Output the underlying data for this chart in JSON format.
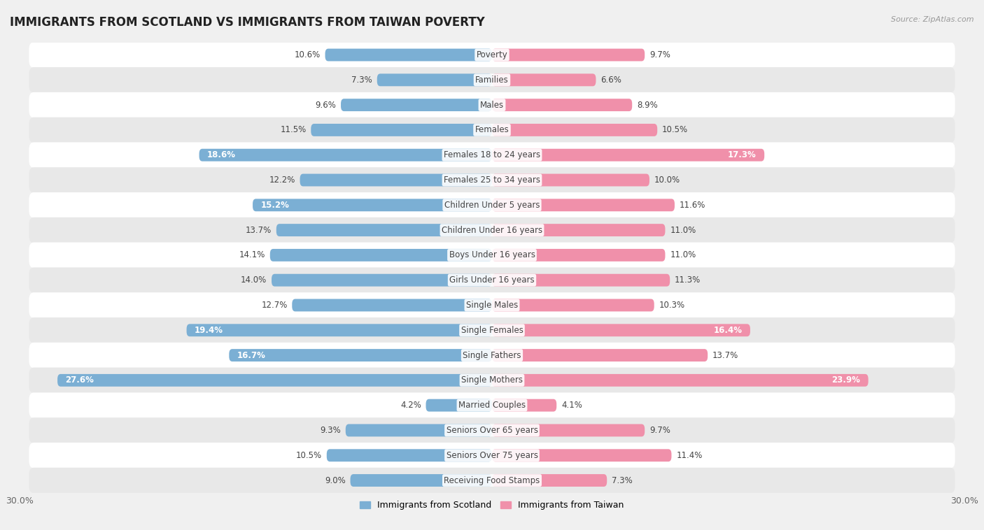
{
  "title": "IMMIGRANTS FROM SCOTLAND VS IMMIGRANTS FROM TAIWAN POVERTY",
  "source": "Source: ZipAtlas.com",
  "categories": [
    "Poverty",
    "Families",
    "Males",
    "Females",
    "Females 18 to 24 years",
    "Females 25 to 34 years",
    "Children Under 5 years",
    "Children Under 16 years",
    "Boys Under 16 years",
    "Girls Under 16 years",
    "Single Males",
    "Single Females",
    "Single Fathers",
    "Single Mothers",
    "Married Couples",
    "Seniors Over 65 years",
    "Seniors Over 75 years",
    "Receiving Food Stamps"
  ],
  "scotland_values": [
    10.6,
    7.3,
    9.6,
    11.5,
    18.6,
    12.2,
    15.2,
    13.7,
    14.1,
    14.0,
    12.7,
    19.4,
    16.7,
    27.6,
    4.2,
    9.3,
    10.5,
    9.0
  ],
  "taiwan_values": [
    9.7,
    6.6,
    8.9,
    10.5,
    17.3,
    10.0,
    11.6,
    11.0,
    11.0,
    11.3,
    10.3,
    16.4,
    13.7,
    23.9,
    4.1,
    9.7,
    11.4,
    7.3
  ],
  "scotland_color": "#7bafd4",
  "taiwan_color": "#f090aa",
  "background_color": "#f0f0f0",
  "row_color_light": "#ffffff",
  "row_color_dark": "#e8e8e8",
  "xlim": 30.0,
  "bar_height": 0.5,
  "legend_labels": [
    "Immigrants from Scotland",
    "Immigrants from Taiwan"
  ],
  "inside_label_threshold": 15.0,
  "label_fontsize": 8.5,
  "cat_fontsize": 8.5,
  "title_fontsize": 12
}
